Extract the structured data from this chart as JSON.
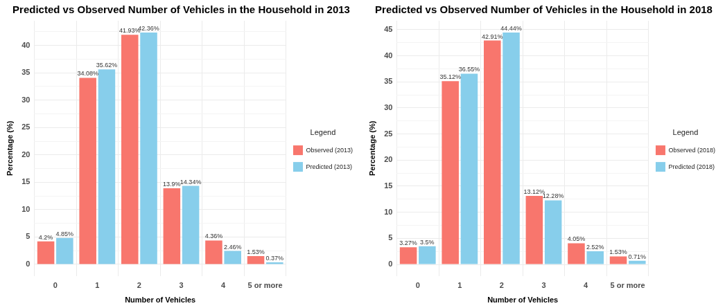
{
  "chart_data": [
    {
      "type": "bar",
      "title": "Predicted vs Observed Number of Vehicles in the Household in 2013",
      "xlabel": "Number of Vehicles",
      "ylabel": "Percentage (%)",
      "legend_title": "Legend",
      "legend": "right",
      "grid": true,
      "categories": [
        "0",
        "1",
        "2",
        "3",
        "4",
        "5 or more"
      ],
      "series": [
        {
          "name": "Observed (2013)",
          "color": "#f8766d",
          "values": [
            4.2,
            34.08,
            41.93,
            13.9,
            4.36,
            1.53
          ],
          "value_labels": [
            "4.2%",
            "34.08%",
            "41.93%",
            "13.9%",
            "4.36%",
            "1.53%"
          ]
        },
        {
          "name": "Predicted (2013)",
          "color": "#87ceeb",
          "values": [
            4.85,
            35.62,
            42.36,
            14.34,
            2.46,
            0.37
          ],
          "value_labels": [
            "4.85%",
            "35.62%",
            "42.36%",
            "14.34%",
            "2.46%",
            "0.37%"
          ]
        }
      ],
      "ylim": [
        -2.1,
        44.5
      ],
      "yticks": [
        0,
        {
          "value": 2.5,
          "label": null
        },
        5,
        {
          "value": 7.5,
          "label": null
        },
        10,
        {
          "value": 12.5,
          "label": null
        },
        15,
        {
          "value": 17.5,
          "label": null
        },
        20,
        {
          "value": 22.5,
          "label": null
        },
        25,
        {
          "value": 27.5,
          "label": null
        },
        30,
        {
          "value": 32.5,
          "label": null
        },
        35,
        {
          "value": 37.5,
          "label": null
        },
        40,
        {
          "value": 42.5,
          "label": null
        }
      ]
    },
    {
      "type": "bar",
      "title": "Predicted vs Observed Number of Vehicles in the Household in 2018",
      "xlabel": "Number of Vehicles",
      "ylabel": "Percentage (%)",
      "legend_title": "Legend",
      "legend": "right",
      "grid": true,
      "categories": [
        "0",
        "1",
        "2",
        "3",
        "4",
        "5 or more"
      ],
      "series": [
        {
          "name": "Observed (2018)",
          "color": "#f8766d",
          "values": [
            3.27,
            35.12,
            42.91,
            13.12,
            4.05,
            1.53
          ],
          "value_labels": [
            "3.27%",
            "35.12%",
            "42.91%",
            "13.12%",
            "4.05%",
            "1.53%"
          ]
        },
        {
          "name": "Predicted (2018)",
          "color": "#87ceeb",
          "values": [
            3.5,
            36.55,
            44.44,
            12.28,
            2.52,
            0.71
          ],
          "value_labels": [
            "3.5%",
            "36.55%",
            "44.44%",
            "12.28%",
            "2.52%",
            "0.71%"
          ]
        }
      ],
      "ylim": [
        -2.2,
        46.7
      ],
      "yticks": [
        0,
        {
          "value": 2.5,
          "label": null
        },
        5,
        {
          "value": 7.5,
          "label": null
        },
        10,
        {
          "value": 12.5,
          "label": null
        },
        15,
        {
          "value": 17.5,
          "label": null
        },
        20,
        {
          "value": 22.5,
          "label": null
        },
        25,
        {
          "value": 27.5,
          "label": null
        },
        30,
        {
          "value": 32.5,
          "label": null
        },
        35,
        {
          "value": 37.5,
          "label": null
        },
        40,
        {
          "value": 42.5,
          "label": null
        },
        45
      ]
    }
  ]
}
